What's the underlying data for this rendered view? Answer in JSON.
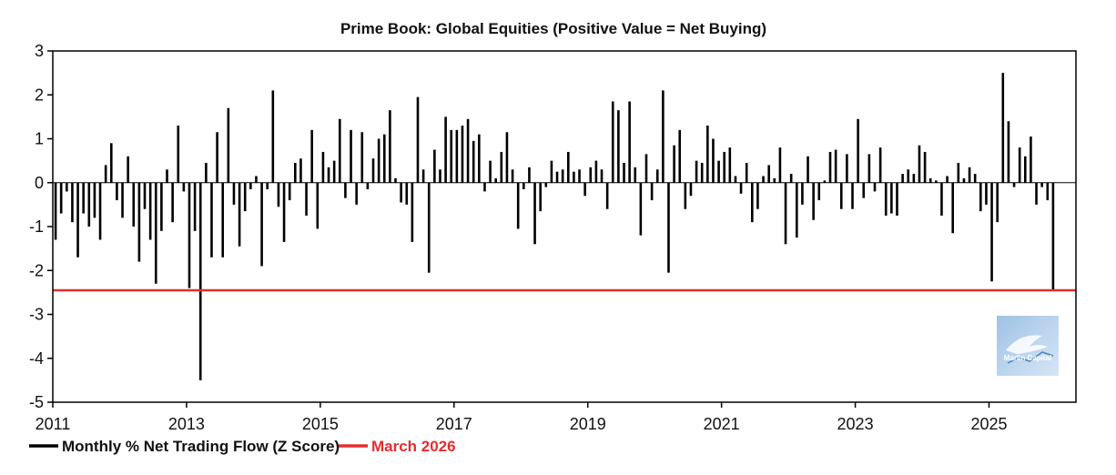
{
  "chart_data": {
    "type": "bar",
    "title": "Prime Book: Global Equities (Positive Value = Net Buying)",
    "xlabel": "",
    "ylabel": "",
    "ylim": [
      -5,
      3
    ],
    "yticks": [
      3,
      2,
      1,
      0,
      -1,
      -2,
      -3,
      -4,
      -5
    ],
    "xlim": [
      2011,
      2026.3
    ],
    "xticks": [
      "2011",
      "2013",
      "2015",
      "2017",
      "2019",
      "2021",
      "2023",
      "2025"
    ],
    "grid": false,
    "legend_position": "bottom-left",
    "series": [
      {
        "name": "Monthly % Net Trading Flow (Z Score)",
        "color": "#000000",
        "start": "2011-01",
        "frequency": "monthly",
        "values": [
          -1.3,
          -0.7,
          -0.2,
          -0.9,
          -1.7,
          -0.7,
          -1.0,
          -0.8,
          -1.3,
          0.4,
          0.9,
          -0.4,
          -0.8,
          0.6,
          -1.0,
          -1.8,
          -0.6,
          -1.3,
          -2.3,
          -1.1,
          0.3,
          -0.9,
          1.3,
          -0.2,
          -2.4,
          -1.1,
          -4.5,
          0.45,
          -1.7,
          1.15,
          -1.7,
          1.7,
          -0.5,
          -1.45,
          -0.65,
          -0.15,
          0.15,
          -1.9,
          -0.15,
          2.1,
          -0.55,
          -1.35,
          -0.4,
          0.45,
          0.55,
          -0.75,
          1.2,
          -1.05,
          0.7,
          0.35,
          0.5,
          1.45,
          -0.35,
          1.2,
          -0.5,
          1.15,
          -0.15,
          0.55,
          1.0,
          1.1,
          1.65,
          0.1,
          -0.45,
          -0.5,
          -1.35,
          1.95,
          0.3,
          -2.05,
          0.75,
          0.3,
          1.5,
          1.2,
          1.2,
          1.3,
          1.45,
          0.95,
          1.1,
          -0.2,
          0.5,
          0.1,
          0.7,
          1.15,
          0.3,
          -1.05,
          -0.15,
          0.35,
          -1.4,
          -0.65,
          -0.1,
          0.5,
          0.25,
          0.3,
          0.7,
          0.25,
          0.3,
          -0.3,
          0.35,
          0.5,
          0.3,
          -0.6,
          1.85,
          1.65,
          0.45,
          1.85,
          0.35,
          -1.2,
          0.65,
          -0.4,
          0.3,
          2.1,
          -2.05,
          0.85,
          1.2,
          -0.6,
          -0.3,
          0.5,
          0.45,
          1.3,
          1.0,
          0.5,
          0.7,
          0.8,
          0.15,
          -0.25,
          0.45,
          -0.9,
          -0.6,
          0.15,
          0.4,
          0.1,
          0.8,
          -1.4,
          0.2,
          -1.25,
          -0.5,
          0.6,
          -0.85,
          -0.4,
          0.05,
          0.7,
          0.75,
          -0.6,
          0.65,
          -0.6,
          1.45,
          -0.35,
          0.65,
          -0.2,
          0.8,
          -0.75,
          -0.7,
          -0.75,
          0.2,
          0.3,
          0.2,
          0.85,
          0.7,
          0.1,
          0.05,
          -0.75,
          0.15,
          -1.15,
          0.45,
          0.1,
          0.35,
          0.2,
          -0.65,
          -0.5,
          -2.25,
          -0.9,
          2.5,
          1.4,
          -0.1,
          0.8,
          0.6,
          1.05,
          -0.5,
          -0.1,
          -0.4,
          -2.45
        ]
      }
    ],
    "reference_lines": [
      {
        "name": "March 2026",
        "value": -2.45,
        "color": "#e52d2d"
      }
    ]
  },
  "watermark": {
    "text": "Marlin Capital"
  }
}
